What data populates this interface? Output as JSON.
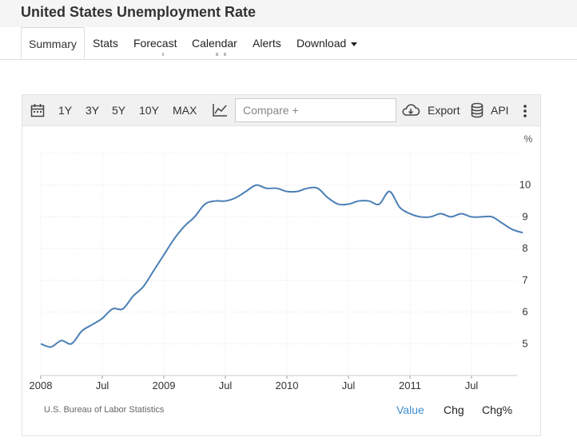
{
  "page": {
    "title": "United States Unemployment Rate"
  },
  "tabs": [
    {
      "label": "Summary",
      "active": true
    },
    {
      "label": "Stats"
    },
    {
      "label": "Forecast"
    },
    {
      "label": "Calendar"
    },
    {
      "label": "Alerts"
    },
    {
      "label": "Download",
      "has_dropdown": true
    }
  ],
  "toolbar": {
    "calendar_icon": "calendar-icon",
    "ranges": [
      "1Y",
      "3Y",
      "5Y",
      "10Y",
      "MAX"
    ],
    "chart_type_icon": "line-chart-icon",
    "compare_placeholder": "Compare +",
    "export_label": "Export",
    "export_icon": "cloud-download-icon",
    "api_label": "API",
    "api_icon": "database-icon",
    "more_icon": "more-vertical-icon"
  },
  "chart_data": {
    "type": "line",
    "title": "",
    "xlabel": "",
    "ylabel": "%",
    "ylim": [
      4,
      11
    ],
    "y_ticks": [
      5,
      6,
      7,
      8,
      9,
      10
    ],
    "x_tick_labels": [
      "2008",
      "Jul",
      "2009",
      "Jul",
      "2010",
      "Jul",
      "2011",
      "Jul"
    ],
    "grid": true,
    "line_color": "#4a7fb5",
    "series": [
      {
        "x": [
          "2008-01",
          "2008-02",
          "2008-03",
          "2008-04",
          "2008-05",
          "2008-06",
          "2008-07",
          "2008-08",
          "2008-09",
          "2008-10",
          "2008-11",
          "2008-12",
          "2009-01",
          "2009-02",
          "2009-03",
          "2009-04",
          "2009-05",
          "2009-06",
          "2009-07",
          "2009-08",
          "2009-09",
          "2009-10",
          "2009-11",
          "2009-12",
          "2010-01",
          "2010-02",
          "2010-03",
          "2010-04",
          "2010-05",
          "2010-06",
          "2010-07",
          "2010-08",
          "2010-09",
          "2010-10",
          "2010-11",
          "2010-12",
          "2011-01",
          "2011-02",
          "2011-03",
          "2011-04",
          "2011-05",
          "2011-06",
          "2011-07",
          "2011-08",
          "2011-09",
          "2011-10",
          "2011-11",
          "2011-12"
        ],
        "values": [
          5.0,
          4.9,
          5.1,
          5.0,
          5.4,
          5.6,
          5.8,
          6.1,
          6.1,
          6.5,
          6.8,
          7.3,
          7.8,
          8.3,
          8.7,
          9.0,
          9.4,
          9.5,
          9.5,
          9.6,
          9.8,
          10.0,
          9.9,
          9.9,
          9.8,
          9.8,
          9.9,
          9.9,
          9.6,
          9.4,
          9.4,
          9.5,
          9.5,
          9.4,
          9.8,
          9.3,
          9.1,
          9.0,
          9.0,
          9.1,
          9.0,
          9.1,
          9.0,
          9.0,
          9.0,
          8.8,
          8.6,
          8.5
        ]
      }
    ]
  },
  "footer": {
    "source": "U.S. Bureau of Labor Statistics",
    "modes": [
      {
        "label": "Value",
        "active": true
      },
      {
        "label": "Chg"
      },
      {
        "label": "Chg%"
      }
    ]
  }
}
